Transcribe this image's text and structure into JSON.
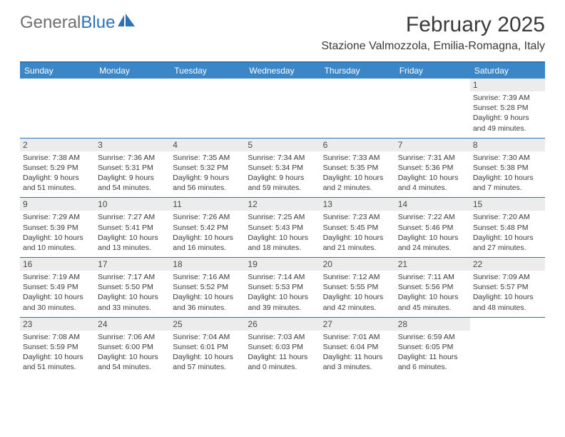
{
  "logo": {
    "text_gray": "General",
    "text_blue": "Blue"
  },
  "title": "February 2025",
  "location": "Stazione Valmozzola, Emilia-Romagna, Italy",
  "header_bg": "#3b86c7",
  "border_color": "#2d72b5",
  "daynum_bg": "#ececec",
  "text_color": "#3a3a3a",
  "weekdays": [
    "Sunday",
    "Monday",
    "Tuesday",
    "Wednesday",
    "Thursday",
    "Friday",
    "Saturday"
  ],
  "weeks": [
    [
      {
        "empty": true
      },
      {
        "empty": true
      },
      {
        "empty": true
      },
      {
        "empty": true
      },
      {
        "empty": true
      },
      {
        "empty": true
      },
      {
        "num": "1",
        "sunrise": "Sunrise: 7:39 AM",
        "sunset": "Sunset: 5:28 PM",
        "daylight": "Daylight: 9 hours and 49 minutes."
      }
    ],
    [
      {
        "num": "2",
        "sunrise": "Sunrise: 7:38 AM",
        "sunset": "Sunset: 5:29 PM",
        "daylight": "Daylight: 9 hours and 51 minutes."
      },
      {
        "num": "3",
        "sunrise": "Sunrise: 7:36 AM",
        "sunset": "Sunset: 5:31 PM",
        "daylight": "Daylight: 9 hours and 54 minutes."
      },
      {
        "num": "4",
        "sunrise": "Sunrise: 7:35 AM",
        "sunset": "Sunset: 5:32 PM",
        "daylight": "Daylight: 9 hours and 56 minutes."
      },
      {
        "num": "5",
        "sunrise": "Sunrise: 7:34 AM",
        "sunset": "Sunset: 5:34 PM",
        "daylight": "Daylight: 9 hours and 59 minutes."
      },
      {
        "num": "6",
        "sunrise": "Sunrise: 7:33 AM",
        "sunset": "Sunset: 5:35 PM",
        "daylight": "Daylight: 10 hours and 2 minutes."
      },
      {
        "num": "7",
        "sunrise": "Sunrise: 7:31 AM",
        "sunset": "Sunset: 5:36 PM",
        "daylight": "Daylight: 10 hours and 4 minutes."
      },
      {
        "num": "8",
        "sunrise": "Sunrise: 7:30 AM",
        "sunset": "Sunset: 5:38 PM",
        "daylight": "Daylight: 10 hours and 7 minutes."
      }
    ],
    [
      {
        "num": "9",
        "sunrise": "Sunrise: 7:29 AM",
        "sunset": "Sunset: 5:39 PM",
        "daylight": "Daylight: 10 hours and 10 minutes."
      },
      {
        "num": "10",
        "sunrise": "Sunrise: 7:27 AM",
        "sunset": "Sunset: 5:41 PM",
        "daylight": "Daylight: 10 hours and 13 minutes."
      },
      {
        "num": "11",
        "sunrise": "Sunrise: 7:26 AM",
        "sunset": "Sunset: 5:42 PM",
        "daylight": "Daylight: 10 hours and 16 minutes."
      },
      {
        "num": "12",
        "sunrise": "Sunrise: 7:25 AM",
        "sunset": "Sunset: 5:43 PM",
        "daylight": "Daylight: 10 hours and 18 minutes."
      },
      {
        "num": "13",
        "sunrise": "Sunrise: 7:23 AM",
        "sunset": "Sunset: 5:45 PM",
        "daylight": "Daylight: 10 hours and 21 minutes."
      },
      {
        "num": "14",
        "sunrise": "Sunrise: 7:22 AM",
        "sunset": "Sunset: 5:46 PM",
        "daylight": "Daylight: 10 hours and 24 minutes."
      },
      {
        "num": "15",
        "sunrise": "Sunrise: 7:20 AM",
        "sunset": "Sunset: 5:48 PM",
        "daylight": "Daylight: 10 hours and 27 minutes."
      }
    ],
    [
      {
        "num": "16",
        "sunrise": "Sunrise: 7:19 AM",
        "sunset": "Sunset: 5:49 PM",
        "daylight": "Daylight: 10 hours and 30 minutes."
      },
      {
        "num": "17",
        "sunrise": "Sunrise: 7:17 AM",
        "sunset": "Sunset: 5:50 PM",
        "daylight": "Daylight: 10 hours and 33 minutes."
      },
      {
        "num": "18",
        "sunrise": "Sunrise: 7:16 AM",
        "sunset": "Sunset: 5:52 PM",
        "daylight": "Daylight: 10 hours and 36 minutes."
      },
      {
        "num": "19",
        "sunrise": "Sunrise: 7:14 AM",
        "sunset": "Sunset: 5:53 PM",
        "daylight": "Daylight: 10 hours and 39 minutes."
      },
      {
        "num": "20",
        "sunrise": "Sunrise: 7:12 AM",
        "sunset": "Sunset: 5:55 PM",
        "daylight": "Daylight: 10 hours and 42 minutes."
      },
      {
        "num": "21",
        "sunrise": "Sunrise: 7:11 AM",
        "sunset": "Sunset: 5:56 PM",
        "daylight": "Daylight: 10 hours and 45 minutes."
      },
      {
        "num": "22",
        "sunrise": "Sunrise: 7:09 AM",
        "sunset": "Sunset: 5:57 PM",
        "daylight": "Daylight: 10 hours and 48 minutes."
      }
    ],
    [
      {
        "num": "23",
        "sunrise": "Sunrise: 7:08 AM",
        "sunset": "Sunset: 5:59 PM",
        "daylight": "Daylight: 10 hours and 51 minutes."
      },
      {
        "num": "24",
        "sunrise": "Sunrise: 7:06 AM",
        "sunset": "Sunset: 6:00 PM",
        "daylight": "Daylight: 10 hours and 54 minutes."
      },
      {
        "num": "25",
        "sunrise": "Sunrise: 7:04 AM",
        "sunset": "Sunset: 6:01 PM",
        "daylight": "Daylight: 10 hours and 57 minutes."
      },
      {
        "num": "26",
        "sunrise": "Sunrise: 7:03 AM",
        "sunset": "Sunset: 6:03 PM",
        "daylight": "Daylight: 11 hours and 0 minutes."
      },
      {
        "num": "27",
        "sunrise": "Sunrise: 7:01 AM",
        "sunset": "Sunset: 6:04 PM",
        "daylight": "Daylight: 11 hours and 3 minutes."
      },
      {
        "num": "28",
        "sunrise": "Sunrise: 6:59 AM",
        "sunset": "Sunset: 6:05 PM",
        "daylight": "Daylight: 11 hours and 6 minutes."
      },
      {
        "empty": true
      }
    ]
  ]
}
